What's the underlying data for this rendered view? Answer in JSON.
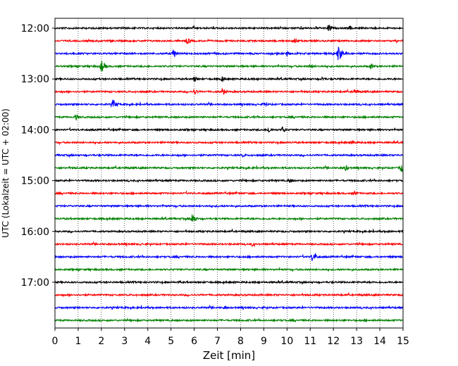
{
  "chart_data": {
    "type": "line",
    "title": "",
    "xlabel": "Zeit  [min]",
    "ylabel": "UTC (Lokalzeit = UTC + 02:00)",
    "xlim": [
      0,
      15
    ],
    "x_ticks": [
      0,
      1,
      2,
      3,
      4,
      5,
      6,
      7,
      8,
      9,
      10,
      11,
      12,
      13,
      14,
      15
    ],
    "y_tick_labels": [
      "12:00",
      "13:00",
      "14:00",
      "15:00",
      "16:00",
      "17:00"
    ],
    "grid": "vertical dotted lines at each minute",
    "trace_colors": [
      "#000000",
      "#ff0000",
      "#0000ff",
      "#008000"
    ],
    "traces": [
      {
        "start": "12:00",
        "color": "#000000",
        "events": [
          [
            11.8,
            7
          ],
          [
            12.7,
            4
          ],
          [
            10.6,
            3
          ]
        ]
      },
      {
        "start": "12:15",
        "color": "#ff0000",
        "events": [
          [
            5.7,
            6
          ],
          [
            10.3,
            5
          ],
          [
            2.4,
            3
          ]
        ]
      },
      {
        "start": "12:30",
        "color": "#0000ff",
        "events": [
          [
            5.1,
            8
          ],
          [
            12.2,
            13
          ],
          [
            10.0,
            4
          ]
        ]
      },
      {
        "start": "12:45",
        "color": "#008000",
        "events": [
          [
            2.0,
            10
          ],
          [
            13.6,
            5
          ],
          [
            11.0,
            4
          ]
        ]
      },
      {
        "start": "13:00",
        "color": "#000000",
        "events": [
          [
            6.0,
            5
          ],
          [
            7.2,
            5
          ],
          [
            11.5,
            4
          ]
        ]
      },
      {
        "start": "13:15",
        "color": "#ff0000",
        "events": [
          [
            6.0,
            5
          ],
          [
            7.2,
            6
          ],
          [
            12.9,
            5
          ]
        ]
      },
      {
        "start": "13:30",
        "color": "#0000ff",
        "events": [
          [
            2.5,
            8
          ],
          [
            9.0,
            5
          ]
        ]
      },
      {
        "start": "13:45",
        "color": "#008000",
        "events": [
          [
            0.9,
            5
          ]
        ]
      },
      {
        "start": "14:00",
        "color": "#000000",
        "events": [
          [
            9.2,
            6
          ],
          [
            9.8,
            5
          ]
        ]
      },
      {
        "start": "14:15",
        "color": "#ff0000",
        "events": [
          [
            12.8,
            4
          ]
        ]
      },
      {
        "start": "14:30",
        "color": "#0000ff",
        "events": [
          [
            8.1,
            3
          ]
        ]
      },
      {
        "start": "14:45",
        "color": "#008000",
        "events": [
          [
            12.5,
            5
          ],
          [
            14.9,
            8
          ]
        ]
      },
      {
        "start": "15:00",
        "color": "#000000",
        "events": [
          [
            10.1,
            4
          ]
        ]
      },
      {
        "start": "15:15",
        "color": "#ff0000",
        "events": [
          [
            12.9,
            4
          ]
        ]
      },
      {
        "start": "15:30",
        "color": "#0000ff",
        "events": [
          [
            7.0,
            2
          ]
        ]
      },
      {
        "start": "15:45",
        "color": "#008000",
        "events": [
          [
            5.9,
            9
          ]
        ]
      },
      {
        "start": "16:00",
        "color": "#000000",
        "events": [
          [
            14.3,
            3
          ]
        ]
      },
      {
        "start": "16:15",
        "color": "#ff0000",
        "events": [
          [
            8.5,
            3
          ]
        ]
      },
      {
        "start": "16:30",
        "color": "#0000ff",
        "events": [
          [
            11.1,
            9
          ]
        ]
      },
      {
        "start": "16:45",
        "color": "#008000",
        "events": []
      },
      {
        "start": "17:00",
        "color": "#000000",
        "events": [
          [
            5.3,
            3
          ]
        ]
      },
      {
        "start": "17:15",
        "color": "#ff0000",
        "events": []
      },
      {
        "start": "17:30",
        "color": "#0000ff",
        "events": [
          [
            7.3,
            3
          ]
        ]
      },
      {
        "start": "17:45",
        "color": "#008000",
        "events": []
      }
    ]
  }
}
